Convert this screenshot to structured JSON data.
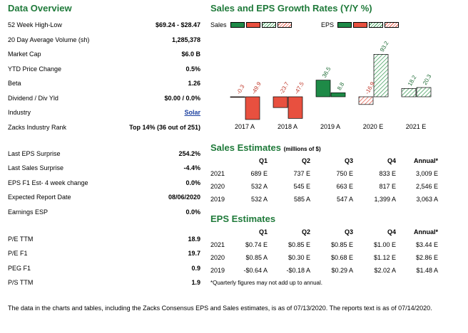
{
  "overview": {
    "title": "Data Overview",
    "rows": [
      {
        "label": "52 Week High-Low",
        "value": "$69.24 - $28.47"
      },
      {
        "label": "20 Day Average Volume (sh)",
        "value": "1,285,378"
      },
      {
        "label": "Market Cap",
        "value": "$6.0 B"
      },
      {
        "label": "YTD Price Change",
        "value": "0.5%"
      },
      {
        "label": "Beta",
        "value": "1.26"
      },
      {
        "label": "Dividend / Div Yld",
        "value": "$0.00 / 0.0%"
      },
      {
        "label": "Industry",
        "value": "Solar"
      },
      {
        "label": "Zacks Industry Rank",
        "value": "Top 14% (36 out of 251)"
      },
      {
        "label": "Last EPS Surprise",
        "value": "254.2%"
      },
      {
        "label": "Last Sales Surprise",
        "value": "-4.4%"
      },
      {
        "label": "EPS F1 Est- 4 week change",
        "value": "0.0%"
      },
      {
        "label": "Expected Report Date",
        "value": "08/06/2020"
      },
      {
        "label": "Earnings ESP",
        "value": "0.0%"
      },
      {
        "label": "P/E TTM",
        "value": "18.9"
      },
      {
        "label": "P/E F1",
        "value": "19.7"
      },
      {
        "label": "PEG F1",
        "value": "0.9"
      },
      {
        "label": "P/S TTM",
        "value": "1.9"
      }
    ]
  },
  "growth": {
    "title": "Sales and EPS Growth Rates (Y/Y %)",
    "legend_sales": "Sales",
    "legend_eps": "EPS"
  },
  "colors": {
    "title_green": "#1f7a3a",
    "solid_green": "#1e8a47",
    "solid_red": "#e8503f",
    "hatch_red": "#e65b4b",
    "hatch_green": "#3a9a55",
    "link": "#1a3fa0"
  },
  "chart_data": {
    "type": "bar",
    "categories": [
      "2017 A",
      "2018 A",
      "2019 A",
      "2020 E",
      "2021 E"
    ],
    "series": [
      {
        "name": "Sales",
        "values": [
          -0.3,
          -23.7,
          36.5,
          -16.9,
          18.2
        ]
      },
      {
        "name": "EPS",
        "values": [
          -49.9,
          -47.5,
          8.8,
          93.2,
          20.3
        ]
      }
    ],
    "value_labels": {
      "Sales": [
        "-0.3",
        "-23.7",
        "36.5",
        "-16.9",
        "18.2"
      ],
      "EPS": [
        "-49.9",
        "-47.5",
        "8.8",
        "93.2",
        "20.3"
      ]
    }
  },
  "sales_estimates": {
    "title": "Sales Estimates",
    "subtitle": "(millions of $)",
    "headers": [
      "",
      "Q1",
      "Q2",
      "Q3",
      "Q4",
      "Annual*"
    ],
    "rows": [
      [
        "2021",
        "689 E",
        "737 E",
        "750 E",
        "833 E",
        "3,009 E"
      ],
      [
        "2020",
        "532 A",
        "545 E",
        "663 E",
        "817 E",
        "2,546 E"
      ],
      [
        "2019",
        "532 A",
        "585 A",
        "547 A",
        "1,399 A",
        "3,063 A"
      ]
    ]
  },
  "eps_estimates": {
    "title": "EPS Estimates",
    "headers": [
      "",
      "Q1",
      "Q2",
      "Q3",
      "Q4",
      "Annual*"
    ],
    "rows": [
      [
        "2021",
        "$0.74 E",
        "$0.85 E",
        "$0.85 E",
        "$1.00 E",
        "$3.44 E"
      ],
      [
        "2020",
        "$0.85 A",
        "$0.30 E",
        "$0.68 E",
        "$1.12 E",
        "$2.86 E"
      ],
      [
        "2019",
        "-$0.64 A",
        "-$0.18 A",
        "$0.29 A",
        "$2.02 A",
        "$1.48 A"
      ]
    ]
  },
  "footnote": "*Quarterly figures may not add up to annual.",
  "footer": "The data in the charts and tables, including the Zacks Consensus EPS and Sales estimates, is as of 07/13/2020. The reports text is as of 07/14/2020."
}
